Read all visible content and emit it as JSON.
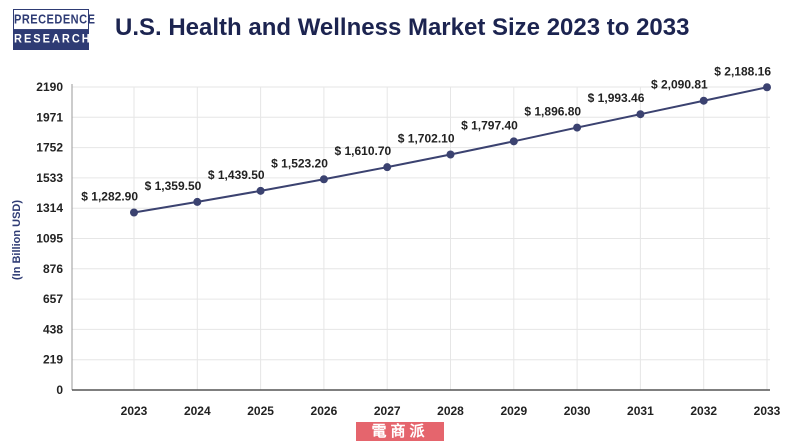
{
  "brand": {
    "line1": "PRECEDENCE",
    "line2": "RESEARCH"
  },
  "watermark": "電商派",
  "chart_data": {
    "type": "line",
    "title": "U.S. Health and Wellness Market Size 2023 to 2033",
    "xlabel": "",
    "ylabel": "(In Billion USD)",
    "categories": [
      "2023",
      "2024",
      "2025",
      "2026",
      "2027",
      "2028",
      "2029",
      "2030",
      "2031",
      "2032",
      "2033"
    ],
    "values": [
      1282.9,
      1359.5,
      1439.5,
      1523.2,
      1610.7,
      1702.1,
      1797.4,
      1896.8,
      1993.46,
      2090.81,
      2188.16
    ],
    "data_labels": [
      "$ 1,282.90",
      "$ 1,359.50",
      "$ 1,439.50",
      "$ 1,523.20",
      "$ 1,610.70",
      "$ 1,702.10",
      "$ 1,797.40",
      "$ 1,896.80",
      "$ 1,993.46",
      "$ 2,090.81",
      "$ 2,188.16"
    ],
    "yticks": [
      "0",
      "219",
      "438",
      "657",
      "876",
      "1095",
      "1314",
      "1533",
      "1752",
      "1971",
      "2190"
    ],
    "ylim": [
      0,
      2190
    ],
    "grid": true,
    "color": "#3b4270"
  }
}
